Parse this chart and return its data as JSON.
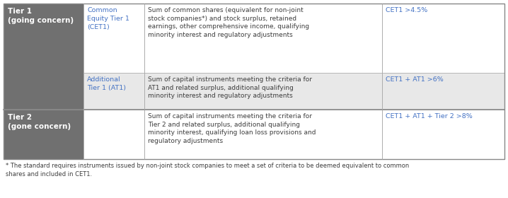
{
  "fig_width": 7.18,
  "fig_height": 2.8,
  "dpi": 100,
  "bg_color": "#ffffff",
  "header_bg": "#707070",
  "header_text_color": "#ffffff",
  "blue_color": "#4472c4",
  "dark_text": "#3d3d3d",
  "outer_border_color": "#888888",
  "inner_line_color": "#aaaaaa",
  "rows": [
    {
      "instrument": "Common\nEquity Tier 1\n(CET1)",
      "description": "Sum of common shares (equivalent for non-joint\nstock companies*) and stock surplus, retained\nearnings, other comprehensive income, qualifying\nminority interest and regulatory adjustments",
      "requirement": "CET1 >4.5%",
      "row_bg": "#ffffff"
    },
    {
      "instrument": "Additional\nTier 1 (AT1)",
      "description": "Sum of capital instruments meeting the criteria for\nAT1 and related surplus, additional qualifying\nminority interest and regulatory adjustments",
      "requirement": "CET1 + AT1 >6%",
      "row_bg": "#e8e8e8"
    },
    {
      "instrument": "",
      "description": "Sum of capital instruments meeting the criteria for\nTier 2 and related surplus, additional qualifying\nminority interest, qualifying loan loss provisions and\nregulatory adjustments",
      "requirement": "CET1 + AT1 + Tier 2 >8%",
      "row_bg": "#ffffff"
    }
  ],
  "tier1_label": "Tier 1\n(going concern)",
  "tier2_label": "Tier 2\n(gone concern)",
  "footnote": "* The standard requires instruments issued by non-joint stock companies to meet a set of criteria to be deemed equivalent to common\nshares and included in CET1."
}
